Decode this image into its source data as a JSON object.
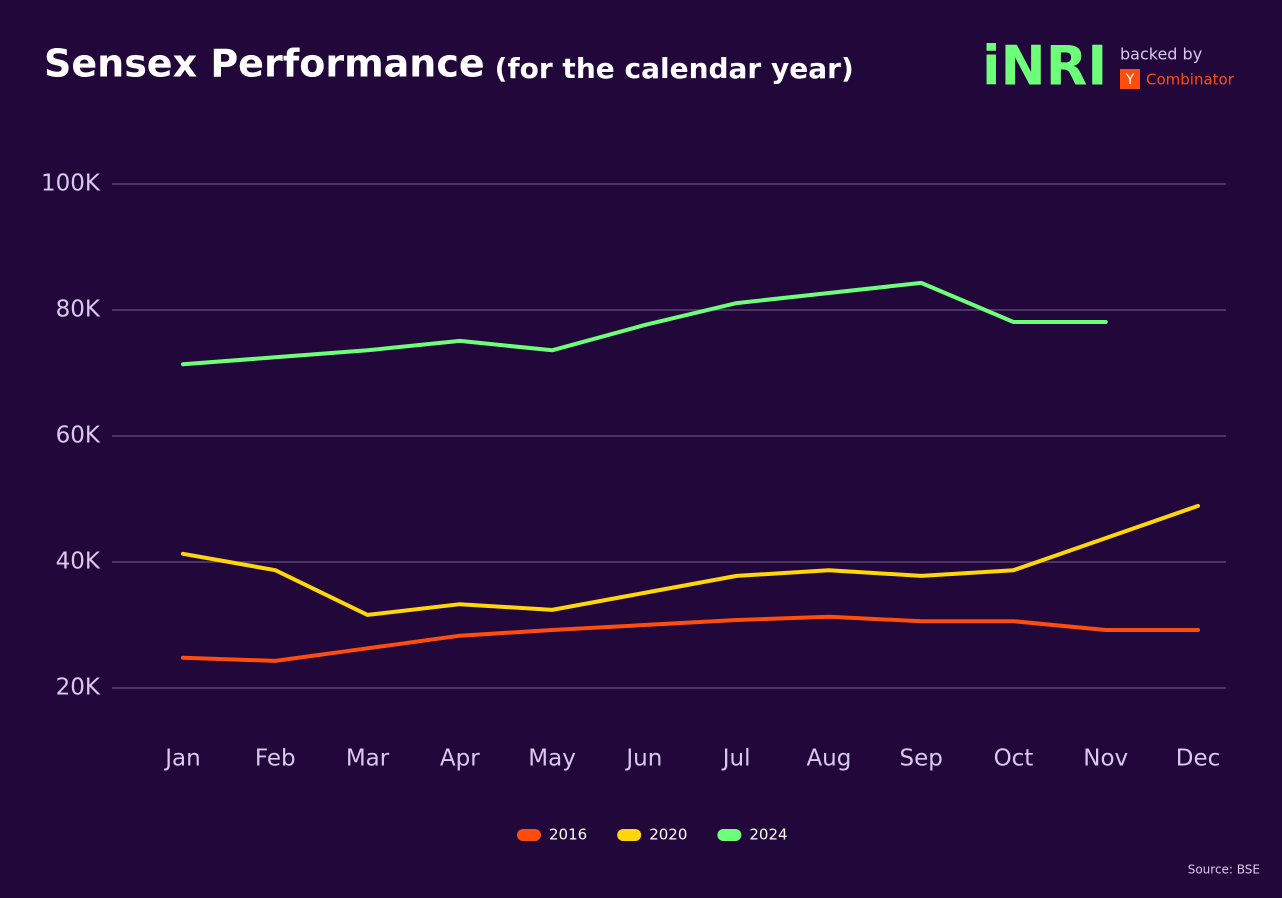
{
  "chart_data": {
    "type": "line",
    "title": "Sensex Performance",
    "subtitle": "(for the calendar year)",
    "brand": {
      "logo": "iNRI",
      "tagline": "backed by",
      "badge": "Y",
      "badge_text": "Combinator"
    },
    "source": "Source: BSE",
    "categories": [
      "Jan",
      "Feb",
      "Mar",
      "Apr",
      "May",
      "Jun",
      "Jul",
      "Aug",
      "Sep",
      "Oct",
      "Nov",
      "Dec"
    ],
    "series": [
      {
        "name": "2016",
        "color": "#ff4d0d",
        "values": [
          24800,
          24300,
          26300,
          28300,
          29200,
          30000,
          30800,
          31300,
          30600,
          30600,
          29200,
          29200
        ]
      },
      {
        "name": "2020",
        "color": "#ffd60a",
        "values": [
          41300,
          38700,
          31600,
          33300,
          32400,
          35100,
          37800,
          38700,
          37800,
          38700,
          43800,
          48900
        ]
      },
      {
        "name": "2024",
        "color": "#6dff7a",
        "values": [
          71400,
          72500,
          73600,
          75100,
          73600,
          77600,
          81100,
          82700,
          84300,
          78100,
          78100,
          null
        ]
      }
    ],
    "ylim": [
      20000,
      100000
    ],
    "yticks": [
      {
        "value": 20000,
        "label": "20K"
      },
      {
        "value": 40000,
        "label": "40K"
      },
      {
        "value": 60000,
        "label": "60K"
      },
      {
        "value": 80000,
        "label": "80K"
      },
      {
        "value": 100000,
        "label": "100K"
      }
    ],
    "grid": true,
    "legend": "bottom"
  }
}
